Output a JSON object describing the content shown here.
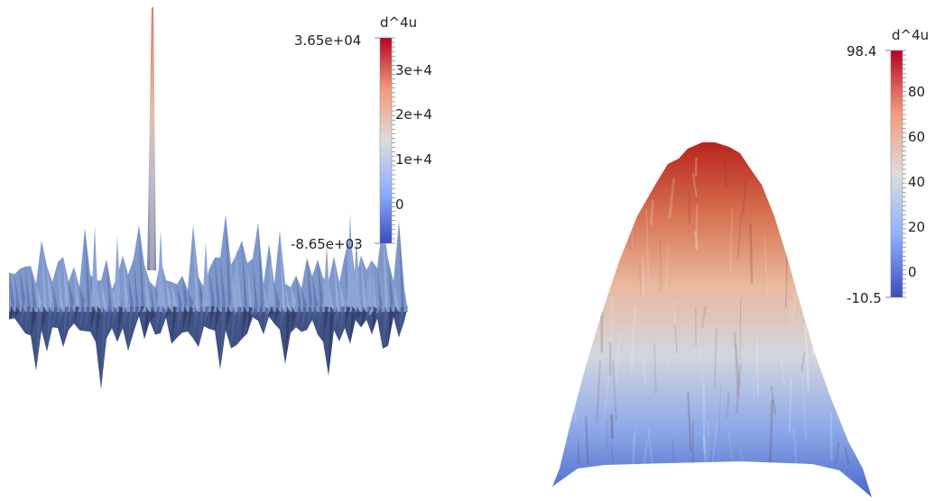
{
  "left_plot": {
    "colorbar": {
      "title": "d^4u",
      "max_label": "3.65e+04",
      "min_label": "-8.65e+03",
      "tick_labels": [
        "3e+4",
        "2e+4",
        "1e+4",
        "0"
      ],
      "max": 36500,
      "min": -8650,
      "ticks": [
        30000,
        20000,
        10000,
        0
      ]
    }
  },
  "right_plot": {
    "colorbar": {
      "title": "d^4u",
      "max_label": "98.4",
      "min_label": "-10.5",
      "tick_labels": [
        "80",
        "60",
        "40",
        "20",
        "0"
      ],
      "max": 98.4,
      "min": -10.5,
      "ticks": [
        80,
        60,
        40,
        20,
        0
      ]
    }
  },
  "colormap": [
    "#3b4cc0",
    "#8db0fe",
    "#dddddd",
    "#f49a7b",
    "#b40426"
  ]
}
